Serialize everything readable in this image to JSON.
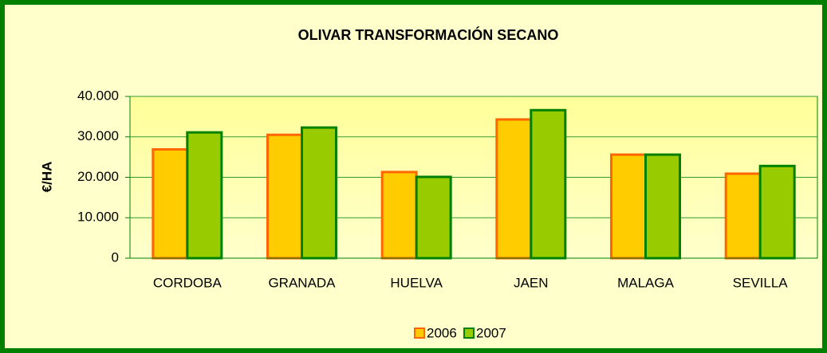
{
  "chart_data": {
    "type": "bar",
    "title": "OLIVAR TRANSFORMACIÓN SECANO",
    "ylabel": "€/HA",
    "categories": [
      "CORDOBA",
      "GRANADA",
      "HUELVA",
      "JAEN",
      "MALAGA",
      "SEVILLA"
    ],
    "series": [
      {
        "name": "2006",
        "color": "#ffcc00",
        "edgecolor": "#ff6600",
        "values": [
          26900,
          30500,
          21300,
          34300,
          25600,
          20900
        ]
      },
      {
        "name": "2007",
        "color": "#99cc00",
        "edgecolor": "#008000",
        "values": [
          31100,
          32300,
          20100,
          36600,
          25600,
          22800
        ]
      }
    ],
    "ylim": [
      0,
      40000
    ],
    "yticks": [
      0,
      {
        "value": 10000,
        "label": "10.000"
      },
      {
        "value": 20000,
        "label": "20.000"
      },
      {
        "value": 30000,
        "label": "30.000"
      },
      {
        "value": 40000,
        "label": "40.000"
      }
    ],
    "grid": true,
    "legend": "bottom"
  }
}
